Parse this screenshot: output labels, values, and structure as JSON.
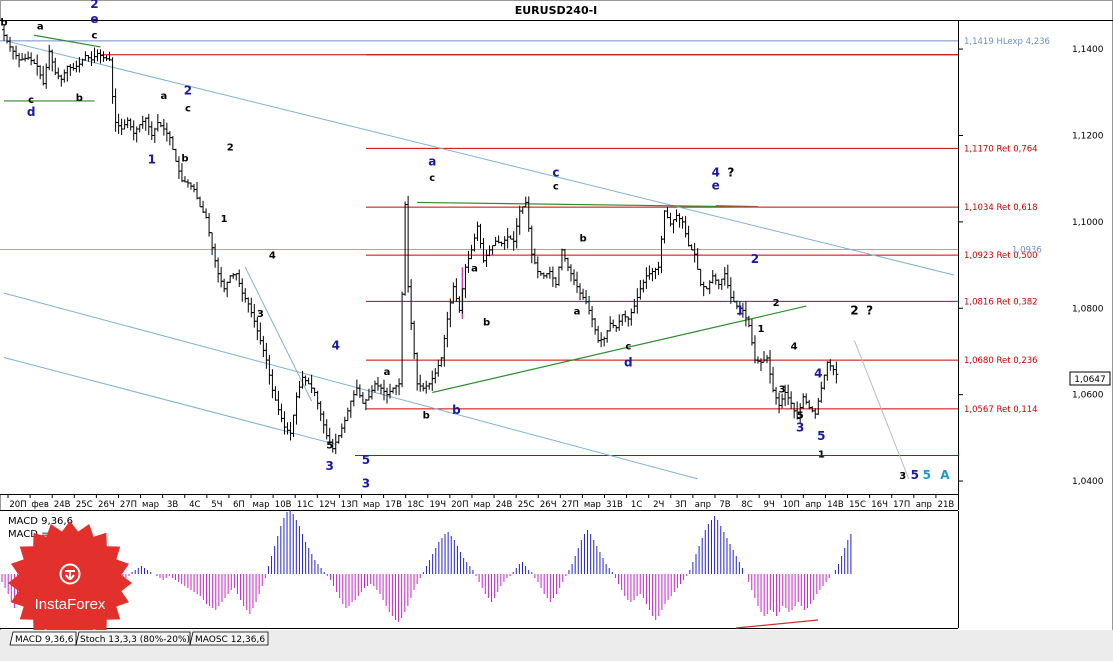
{
  "chart_data": {
    "type": "candlestick",
    "title": "EURUSD240-I",
    "ylim": [
      1.037,
      1.1465
    ],
    "yticks": [
      "1,1400",
      "1,1200",
      "1,1000",
      "1,0800",
      "1,0600",
      "1,0400"
    ],
    "current_price": "1,0647",
    "x_ticks": [
      "20П",
      "фев",
      "24В",
      "25С",
      "26Ч",
      "27П",
      "мар",
      "3В",
      "4С",
      "5Ч",
      "6П",
      "мар",
      "10В",
      "11С",
      "12Ч",
      "13П",
      "мар",
      "17В",
      "18С",
      "19Ч",
      "20П",
      "мар",
      "24В",
      "25С",
      "26Ч",
      "27П",
      "мар",
      "31В",
      "1С",
      "2Ч",
      "3П",
      "апр",
      "7В",
      "8С",
      "9Ч",
      "10П",
      "апр",
      "14В",
      "15С",
      "16Ч",
      "17П",
      "апр",
      "21В"
    ],
    "levels": [
      {
        "label": "1,1419 HLexp 4,236",
        "value": 1.1419,
        "color": "#6f8fc7"
      },
      {
        "label": "",
        "value": 1.1387,
        "color": "#cc0000"
      },
      {
        "label": "1,1170 Ret 0,764",
        "value": 1.117,
        "color": "#cc0000"
      },
      {
        "label": "1,1034 Ret 0,618",
        "value": 1.1034,
        "color": "#cc0000"
      },
      {
        "label": "1,0923 Ret 0,500",
        "value": 1.0923,
        "color": "#cc0000"
      },
      {
        "label": "1,0816 Ret 0,382",
        "value": 1.0816,
        "color": "#cc0000"
      },
      {
        "label": "1,0680 Ret 0,236",
        "value": 1.068,
        "color": "#cc0000"
      },
      {
        "label": "1,0567 Ret 0,114",
        "value": 1.0567,
        "color": "#cc0000"
      },
      {
        "label": "",
        "value": 1.0459,
        "color": "#cc0000"
      }
    ],
    "level_overlap_label": "1,0936",
    "price_path": [
      [
        0,
        1.1445
      ],
      [
        3,
        1.1405
      ],
      [
        6,
        1.1375
      ],
      [
        9,
        1.138
      ],
      [
        12,
        1.136
      ],
      [
        14,
        1.132
      ],
      [
        16,
        1.1395
      ],
      [
        18,
        1.1345
      ],
      [
        20,
        1.133
      ],
      [
        22,
        1.136
      ],
      [
        24,
        1.1355
      ],
      [
        26,
        1.1365
      ],
      [
        28,
        1.1385
      ],
      [
        30,
        1.1375
      ],
      [
        32,
        1.139
      ],
      [
        34,
        1.138
      ],
      [
        36,
        1.1375
      ],
      [
        37,
        1.129
      ],
      [
        38,
        1.123
      ],
      [
        40,
        1.1215
      ],
      [
        42,
        1.1235
      ],
      [
        44,
        1.1205
      ],
      [
        46,
        1.1225
      ],
      [
        48,
        1.124
      ],
      [
        50,
        1.12
      ],
      [
        52,
        1.123
      ],
      [
        54,
        1.1215
      ],
      [
        56,
        1.1195
      ],
      [
        58,
        1.114
      ],
      [
        60,
        1.1095
      ],
      [
        62,
        1.109
      ],
      [
        64,
        1.1075
      ],
      [
        66,
        1.1035
      ],
      [
        68,
        1.101
      ],
      [
        70,
        1.094
      ],
      [
        72,
        1.088
      ],
      [
        74,
        1.0845
      ],
      [
        76,
        1.0875
      ],
      [
        78,
        1.088
      ],
      [
        80,
        1.0835
      ],
      [
        82,
        1.081
      ],
      [
        84,
        1.077
      ],
      [
        86,
        1.0725
      ],
      [
        88,
        1.068
      ],
      [
        90,
        1.061
      ],
      [
        92,
        1.0565
      ],
      [
        94,
        1.0525
      ],
      [
        96,
        1.051
      ],
      [
        98,
        1.0595
      ],
      [
        100,
        1.064
      ],
      [
        102,
        1.0625
      ],
      [
        104,
        1.0605
      ],
      [
        106,
        1.0555
      ],
      [
        108,
        1.0505
      ],
      [
        110,
        1.0475
      ],
      [
        112,
        1.0505
      ],
      [
        114,
        1.054
      ],
      [
        116,
        1.0585
      ],
      [
        118,
        1.0615
      ],
      [
        120,
        1.058
      ],
      [
        122,
        1.0595
      ],
      [
        124,
        1.0625
      ],
      [
        126,
        1.0615
      ],
      [
        128,
        1.06
      ],
      [
        130,
        1.0615
      ],
      [
        132,
        1.0625
      ],
      [
        134,
        1.104
      ],
      [
        135,
        1.085
      ],
      [
        136,
        1.0765
      ],
      [
        138,
        1.0625
      ],
      [
        140,
        1.0615
      ],
      [
        142,
        1.0625
      ],
      [
        144,
        1.065
      ],
      [
        146,
        1.0685
      ],
      [
        148,
        1.0775
      ],
      [
        150,
        1.085
      ],
      [
        152,
        1.0795
      ],
      [
        154,
        1.0895
      ],
      [
        156,
        1.0935
      ],
      [
        158,
        1.099
      ],
      [
        160,
        1.091
      ],
      [
        162,
        1.0935
      ],
      [
        164,
        1.0955
      ],
      [
        166,
        1.095
      ],
      [
        168,
        1.0965
      ],
      [
        170,
        1.0955
      ],
      [
        172,
        1.1025
      ],
      [
        174,
        1.1045
      ],
      [
        176,
        1.0925
      ],
      [
        178,
        1.0885
      ],
      [
        180,
        1.0875
      ],
      [
        182,
        1.0885
      ],
      [
        184,
        1.0855
      ],
      [
        186,
        1.0935
      ],
      [
        188,
        1.0895
      ],
      [
        190,
        1.0865
      ],
      [
        192,
        1.0835
      ],
      [
        194,
        1.0815
      ],
      [
        196,
        1.0775
      ],
      [
        198,
        1.0725
      ],
      [
        200,
        1.073
      ],
      [
        202,
        1.0765
      ],
      [
        204,
        1.0755
      ],
      [
        206,
        1.0785
      ],
      [
        208,
        1.0775
      ],
      [
        210,
        1.0805
      ],
      [
        212,
        1.0845
      ],
      [
        214,
        1.0875
      ],
      [
        216,
        1.0885
      ],
      [
        218,
        1.0895
      ],
      [
        220,
        1.1025
      ],
      [
        222,
        1.0995
      ],
      [
        224,
        1.1015
      ],
      [
        226,
        1.1
      ],
      [
        228,
        1.0945
      ],
      [
        230,
        1.0925
      ],
      [
        232,
        1.0855
      ],
      [
        234,
        1.0845
      ],
      [
        236,
        1.0875
      ],
      [
        238,
        1.0855
      ],
      [
        240,
        1.088
      ],
      [
        242,
        1.0825
      ],
      [
        244,
        1.0805
      ],
      [
        246,
        1.0795
      ],
      [
        248,
        1.076
      ],
      [
        250,
        1.068
      ],
      [
        252,
        1.0675
      ],
      [
        254,
        1.0685
      ],
      [
        256,
        1.061
      ],
      [
        258,
        1.0575
      ],
      [
        260,
        1.0605
      ],
      [
        262,
        1.058
      ],
      [
        264,
        1.0545
      ],
      [
        266,
        1.0595
      ],
      [
        268,
        1.057
      ],
      [
        270,
        1.0555
      ],
      [
        272,
        1.0615
      ],
      [
        274,
        1.0675
      ],
      [
        276,
        1.0658
      ],
      [
        277,
        1.0647
      ]
    ],
    "wave_labels": [
      {
        "text": "b",
        "i": 0,
        "y": 1.1455,
        "color": "#000000"
      },
      {
        "text": "a",
        "i": 12,
        "y": 1.1445,
        "color": "#000000"
      },
      {
        "text": "2",
        "i": 30,
        "y": 1.1495,
        "color": "#1a1aa0",
        "big": true
      },
      {
        "text": "e",
        "i": 30,
        "y": 1.146,
        "color": "#1a1aa0",
        "big": true
      },
      {
        "text": "c",
        "i": 30,
        "y": 1.1425,
        "color": "#000000"
      },
      {
        "text": "c",
        "i": 9,
        "y": 1.1275,
        "color": "#000000"
      },
      {
        "text": "d",
        "i": 9,
        "y": 1.1245,
        "color": "#1a1aa0",
        "big": true
      },
      {
        "text": "b",
        "i": 25,
        "y": 1.128,
        "color": "#000000"
      },
      {
        "text": "a",
        "i": 53,
        "y": 1.1285,
        "color": "#000000"
      },
      {
        "text": "2",
        "i": 61,
        "y": 1.1295,
        "color": "#1a1aa0",
        "big": true
      },
      {
        "text": "c",
        "i": 61,
        "y": 1.1255,
        "color": "#000000"
      },
      {
        "text": "1",
        "i": 49,
        "y": 1.1135,
        "color": "#1a1aa0",
        "big": true
      },
      {
        "text": "b",
        "i": 60,
        "y": 1.114,
        "color": "#000000"
      },
      {
        "text": "2",
        "i": 75,
        "y": 1.1165,
        "color": "#000000"
      },
      {
        "text": "1",
        "i": 73,
        "y": 1.1,
        "color": "#000000"
      },
      {
        "text": "4",
        "i": 89,
        "y": 1.0915,
        "color": "#000000"
      },
      {
        "text": "3",
        "i": 85,
        "y": 1.078,
        "color": "#000000"
      },
      {
        "text": "4",
        "i": 110,
        "y": 1.0705,
        "color": "#1a1aa0",
        "big": true
      },
      {
        "text": "5",
        "i": 108,
        "y": 1.0475,
        "color": "#000000"
      },
      {
        "text": "3",
        "i": 108,
        "y": 1.0425,
        "color": "#1a1aa0",
        "big": true
      },
      {
        "text": "5",
        "i": 120,
        "y": 1.044,
        "color": "#1a1aa0",
        "big": true
      },
      {
        "text": "3",
        "i": 120,
        "y": 1.0385,
        "color": "#1a1aa0",
        "big": true
      },
      {
        "text": "a",
        "i": 142,
        "y": 1.113,
        "color": "#1a1aa0",
        "big": true
      },
      {
        "text": "c",
        "i": 142,
        "y": 1.1095,
        "color": "#000000"
      },
      {
        "text": "a",
        "i": 127,
        "y": 1.0645,
        "color": "#000000"
      },
      {
        "text": "b",
        "i": 140,
        "y": 1.0545,
        "color": "#000000"
      },
      {
        "text": "b",
        "i": 150,
        "y": 1.0555,
        "color": "#1a1aa0",
        "big": true
      },
      {
        "text": "a",
        "i": 156,
        "y": 1.0885,
        "color": "#000000"
      },
      {
        "text": "b",
        "i": 160,
        "y": 1.076,
        "color": "#000000"
      },
      {
        "text": "c",
        "i": 183,
        "y": 1.1105,
        "color": "#1a1aa0",
        "big": true
      },
      {
        "text": "c",
        "i": 183,
        "y": 1.1075,
        "color": "#000000"
      },
      {
        "text": "b",
        "i": 192,
        "y": 1.0955,
        "color": "#000000"
      },
      {
        "text": "a",
        "i": 190,
        "y": 1.0785,
        "color": "#000000"
      },
      {
        "text": "c",
        "i": 207,
        "y": 1.0705,
        "color": "#000000"
      },
      {
        "text": "d",
        "i": 207,
        "y": 1.0665,
        "color": "#1a1aa0",
        "big": true
      },
      {
        "text": "4",
        "i": 236,
        "y": 1.1105,
        "color": "#1a1aa0",
        "big": true
      },
      {
        "text": "?",
        "i": 241,
        "y": 1.1105,
        "color": "#000000",
        "big": true
      },
      {
        "text": "e",
        "i": 236,
        "y": 1.1075,
        "color": "#1a1aa0",
        "big": true
      },
      {
        "text": "2",
        "i": 249,
        "y": 1.0905,
        "color": "#1a1aa0",
        "big": true
      },
      {
        "text": "1",
        "i": 244,
        "y": 1.0785,
        "color": "#1a1aa0",
        "big": true
      },
      {
        "text": "2",
        "i": 256,
        "y": 1.0805,
        "color": "#000000"
      },
      {
        "text": "1",
        "i": 251,
        "y": 1.0745,
        "color": "#000000"
      },
      {
        "text": "4",
        "i": 262,
        "y": 1.0705,
        "color": "#000000"
      },
      {
        "text": "3",
        "i": 258,
        "y": 1.0605,
        "color": "#000000"
      },
      {
        "text": "4",
        "i": 270,
        "y": 1.064,
        "color": "#1a1aa0",
        "big": true
      },
      {
        "text": "5",
        "i": 264,
        "y": 1.0545,
        "color": "#000000"
      },
      {
        "text": "3",
        "i": 264,
        "y": 1.0515,
        "color": "#1a1aa0",
        "big": true
      },
      {
        "text": "5",
        "i": 271,
        "y": 1.0495,
        "color": "#1a1aa0",
        "big": true
      },
      {
        "text": "1",
        "i": 271,
        "y": 1.0455,
        "color": "#000000"
      },
      {
        "text": "2",
        "i": 282,
        "y": 1.0785,
        "color": "#000000",
        "big": true
      },
      {
        "text": "?",
        "i": 287,
        "y": 1.0785,
        "color": "#000000",
        "big": true
      },
      {
        "text": "3",
        "i": 298,
        "y": 1.0405,
        "color": "#000000"
      },
      {
        "text": "5",
        "i": 302,
        "y": 1.0405,
        "color": "#1a1aa0",
        "big": true
      },
      {
        "text": "5",
        "i": 306,
        "y": 1.0405,
        "color": "#1a9ac7",
        "big": true
      },
      {
        "text": "A",
        "i": 312,
        "y": 1.0405,
        "color": "#1a9ac7",
        "big": true
      }
    ],
    "channel_lines": [
      {
        "from": [
          0,
          1.142
        ],
        "to": [
          315,
          1.0877
        ],
        "color": "#7eb2d6"
      },
      {
        "from": [
          0,
          1.0835
        ],
        "to": [
          230,
          1.0405
        ],
        "color": "#7eb2d6"
      },
      {
        "from": [
          0,
          1.0686
        ],
        "to": [
          110,
          1.0485
        ],
        "color": "#7eb2d6"
      },
      {
        "from": [
          142,
          1.0605
        ],
        "to": [
          266,
          1.0805
        ],
        "color": "#2e8b2e"
      },
      {
        "from": [
          137,
          1.1045
        ],
        "to": [
          245,
          1.1035
        ],
        "color": "#2e8b2e"
      },
      {
        "from": [
          10,
          1.1432
        ],
        "to": [
          32,
          1.1405
        ],
        "color": "#2e8b2e"
      },
      {
        "from": [
          0,
          1.128
        ],
        "to": [
          30,
          1.128
        ],
        "color": "#2e8b2e"
      },
      {
        "from": [
          282,
          1.0725
        ],
        "to": [
          300,
          1.0405
        ],
        "color": "#bbbbbb"
      },
      {
        "from": [
          80,
          1.0895
        ],
        "to": [
          102,
          1.0585
        ],
        "color": "#7eb2d6"
      }
    ],
    "macd": {
      "label": "MACD 9,36,6",
      "value_label": "MACD = 0,00",
      "values": [
        -0.2,
        -0.35,
        -0.5,
        -0.7,
        -0.85,
        -0.75,
        -0.6,
        -0.45,
        -0.35,
        -0.25,
        -0.4,
        -0.6,
        -0.8,
        -0.9,
        -0.7,
        -0.5,
        -0.35,
        -0.25,
        -0.2,
        -0.15,
        -0.12,
        -0.1,
        -0.12,
        -0.15,
        -0.2,
        -0.3,
        -0.35,
        -0.4,
        -0.5,
        -0.6,
        -0.7,
        -0.75,
        -0.8,
        -0.85,
        -0.75,
        -0.6,
        -0.5,
        -0.4,
        -0.3,
        -0.2,
        -0.1,
        -0.05,
        0.05,
        0.1,
        0.15,
        0.2,
        0.15,
        0.1,
        0.05,
        0.0,
        -0.05,
        -0.1,
        -0.15,
        -0.1,
        -0.05,
        -0.1,
        -0.15,
        -0.2,
        -0.25,
        -0.3,
        -0.35,
        -0.4,
        -0.45,
        -0.5,
        -0.55,
        -0.65,
        -0.75,
        -0.8,
        -0.85,
        -0.9,
        -0.8,
        -0.7,
        -0.6,
        -0.5,
        -0.4,
        -0.35,
        -0.5,
        -0.65,
        -0.8,
        -0.9,
        -1.0,
        -0.85,
        -0.7,
        -0.5,
        -0.3,
        -0.1,
        0.2,
        0.45,
        0.7,
        0.95,
        1.2,
        1.4,
        1.55,
        1.6,
        1.5,
        1.35,
        1.2,
        1.0,
        0.8,
        0.65,
        0.5,
        0.35,
        0.25,
        0.15,
        0.05,
        -0.05,
        -0.15,
        -0.3,
        -0.45,
        -0.6,
        -0.75,
        -0.85,
        -0.8,
        -0.7,
        -0.65,
        -0.55,
        -0.45,
        -0.35,
        -0.3,
        -0.25,
        -0.3,
        -0.4,
        -0.5,
        -0.65,
        -0.8,
        -0.95,
        -1.05,
        -1.15,
        -1.2,
        -1.1,
        -0.95,
        -0.8,
        -0.6,
        -0.4,
        -0.25,
        -0.1,
        0.05,
        0.2,
        0.35,
        0.5,
        0.65,
        0.8,
        0.9,
        1.0,
        1.05,
        0.95,
        0.85,
        0.7,
        0.55,
        0.4,
        0.3,
        0.2,
        0.1,
        -0.05,
        -0.2,
        -0.35,
        -0.5,
        -0.6,
        -0.7,
        -0.6,
        -0.45,
        -0.3,
        -0.2,
        -0.1,
        -0.05,
        0.05,
        0.15,
        0.25,
        0.3,
        0.2,
        0.1,
        0.05,
        -0.1,
        -0.2,
        -0.35,
        -0.5,
        -0.6,
        -0.7,
        -0.6,
        -0.5,
        -0.35,
        -0.2,
        -0.05,
        0.1,
        0.25,
        0.45,
        0.65,
        0.85,
        1.0,
        1.1,
        1.0,
        0.85,
        0.7,
        0.55,
        0.4,
        0.25,
        0.15,
        0.05,
        -0.1,
        -0.25,
        -0.4,
        -0.55,
        -0.65,
        -0.7,
        -0.65,
        -0.55,
        -0.5,
        -0.6,
        -0.75,
        -0.9,
        -1.05,
        -1.15,
        -1.05,
        -0.9,
        -0.75,
        -0.65,
        -0.55,
        -0.45,
        -0.35,
        -0.25,
        -0.15,
        -0.05,
        0.1,
        0.3,
        0.5,
        0.7,
        0.9,
        1.1,
        1.25,
        1.35,
        1.45,
        1.35,
        1.2,
        1.05,
        0.9,
        0.75,
        0.6,
        0.45,
        0.3,
        0.15,
        0.0,
        -0.2,
        -0.4,
        -0.6,
        -0.8,
        -0.95,
        -1.05,
        -1.0,
        -0.9,
        -0.95,
        -1.05,
        -0.95,
        -0.8,
        -0.85,
        -0.95,
        -0.9,
        -0.8,
        -0.7,
        -0.8,
        -0.9,
        -0.85,
        -0.75,
        -0.65,
        -0.5,
        -0.4,
        -0.3,
        -0.2,
        -0.1,
        0.0,
        0.1,
        0.25,
        0.45,
        0.65,
        0.85,
        1.0
      ]
    }
  },
  "tabs": [
    "MACD 9,36,6",
    "Stoch 13,3,3 (80%-20%)",
    "MAOSC 12,36,6"
  ],
  "logo": {
    "name": "InstaForex",
    "color": "#e2302d"
  }
}
